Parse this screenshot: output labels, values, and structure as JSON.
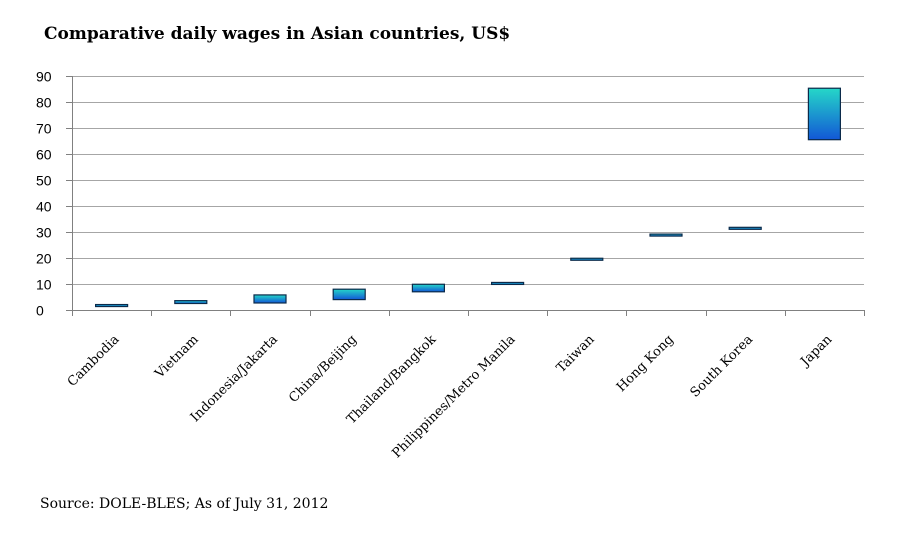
{
  "chart_data": {
    "type": "bar",
    "title": "Comparative daily wages in Asian countries, US$",
    "subtitle": "",
    "xlabel": "",
    "ylabel": "",
    "ylim": [
      0,
      90
    ],
    "yticks": [
      0,
      10,
      20,
      30,
      40,
      50,
      60,
      70,
      80,
      90
    ],
    "grid": true,
    "legend": "none",
    "categories": [
      "Cambodia",
      "Vietnam",
      "Indonesia/Jakarta",
      "China/Beijing",
      "Thailand/Bangkok",
      "Philippines/Metro Manila",
      "Taiwan",
      "Hong Kong",
      "South Korea",
      "Japan"
    ],
    "series": [
      {
        "low": [
          1.6,
          2.5,
          2.7,
          4.0,
          7.0,
          9.9,
          19.4,
          28.7,
          31.2,
          65.5
        ],
        "high": [
          2.1,
          3.6,
          5.8,
          8.0,
          9.9,
          10.6,
          19.9,
          29.2,
          31.8,
          85.3
        ]
      }
    ],
    "colors": {
      "bar_top": "#25d7c8",
      "bar_bottom": "#1257d6",
      "bar_stroke": "#0b2a4a",
      "grid": "#a6a6a6",
      "axis": "#808080"
    }
  },
  "source": "Source: DOLE-BLES; As of July 31, 2012"
}
